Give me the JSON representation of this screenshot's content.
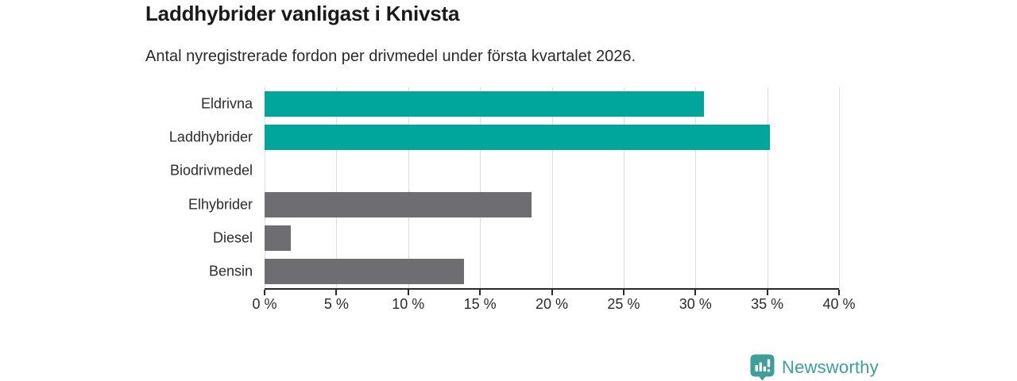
{
  "chart_data": {
    "type": "bar",
    "orientation": "horizontal",
    "title": "Laddhybrider vanligast i Knivsta",
    "subtitle": "Antal nyregistrerade fordon per drivmedel under första kvartalet 2026.",
    "categories": [
      "Eldrivna",
      "Laddhybrider",
      "Biodrivmedel",
      "Elhybrider",
      "Diesel",
      "Bensin"
    ],
    "values": [
      30.6,
      35.2,
      0,
      18.6,
      1.8,
      13.9
    ],
    "unit": "%",
    "bar_colors": [
      "#00A59B",
      "#00A59B",
      "#6E6E72",
      "#6E6E72",
      "#6E6E72",
      "#6E6E72"
    ],
    "highlight_color": "#00A59B",
    "default_color": "#6E6E72",
    "xlabel": "",
    "ylabel": "",
    "xlim": [
      0,
      40
    ],
    "x_tick_step": 5,
    "x_tick_labels": [
      "0 %",
      "5 %",
      "10 %",
      "15 %",
      "20 %",
      "25 %",
      "30 %",
      "35 %",
      "40 %"
    ],
    "grid": true,
    "gridline_color": "#dedede",
    "axis_color": "#2b2b2b",
    "legend": false
  },
  "branding": {
    "logo_text": "Newsworthy",
    "logo_color": "#3E9E98",
    "logo_icon": "bar-chart-pin-icon"
  }
}
